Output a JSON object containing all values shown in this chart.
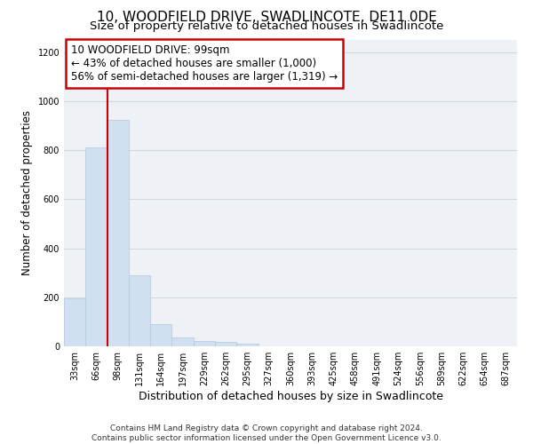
{
  "title": "10, WOODFIELD DRIVE, SWADLINCOTE, DE11 0DE",
  "subtitle": "Size of property relative to detached houses in Swadlincote",
  "xlabel": "Distribution of detached houses by size in Swadlincote",
  "ylabel": "Number of detached properties",
  "bin_labels": [
    "33sqm",
    "66sqm",
    "98sqm",
    "131sqm",
    "164sqm",
    "197sqm",
    "229sqm",
    "262sqm",
    "295sqm",
    "327sqm",
    "360sqm",
    "393sqm",
    "425sqm",
    "458sqm",
    "491sqm",
    "524sqm",
    "556sqm",
    "589sqm",
    "622sqm",
    "654sqm",
    "687sqm"
  ],
  "bar_values": [
    195,
    810,
    925,
    290,
    90,
    38,
    20,
    18,
    12,
    0,
    0,
    0,
    0,
    0,
    0,
    0,
    0,
    0,
    0,
    0,
    0
  ],
  "bar_color": "#d0e0f0",
  "bar_edgecolor": "#b0c8dc",
  "vline_index": 2,
  "annotation_text_line1": "10 WOODFIELD DRIVE: 99sqm",
  "annotation_text_line2": "← 43% of detached houses are smaller (1,000)",
  "annotation_text_line3": "56% of semi-detached houses are larger (1,319) →",
  "annotation_box_color": "#ffffff",
  "annotation_box_edgecolor": "#cc0000",
  "vline_color": "#cc0000",
  "ylim": [
    0,
    1250
  ],
  "yticks": [
    0,
    200,
    400,
    600,
    800,
    1000,
    1200
  ],
  "grid_color": "#d0d8e0",
  "bg_color": "#eef2f7",
  "footer_text": "Contains HM Land Registry data © Crown copyright and database right 2024.\nContains public sector information licensed under the Open Government Licence v3.0.",
  "title_fontsize": 11,
  "subtitle_fontsize": 9.5,
  "xlabel_fontsize": 9,
  "ylabel_fontsize": 8.5,
  "tick_fontsize": 7,
  "annotation_fontsize": 8.5,
  "footer_fontsize": 6.5
}
